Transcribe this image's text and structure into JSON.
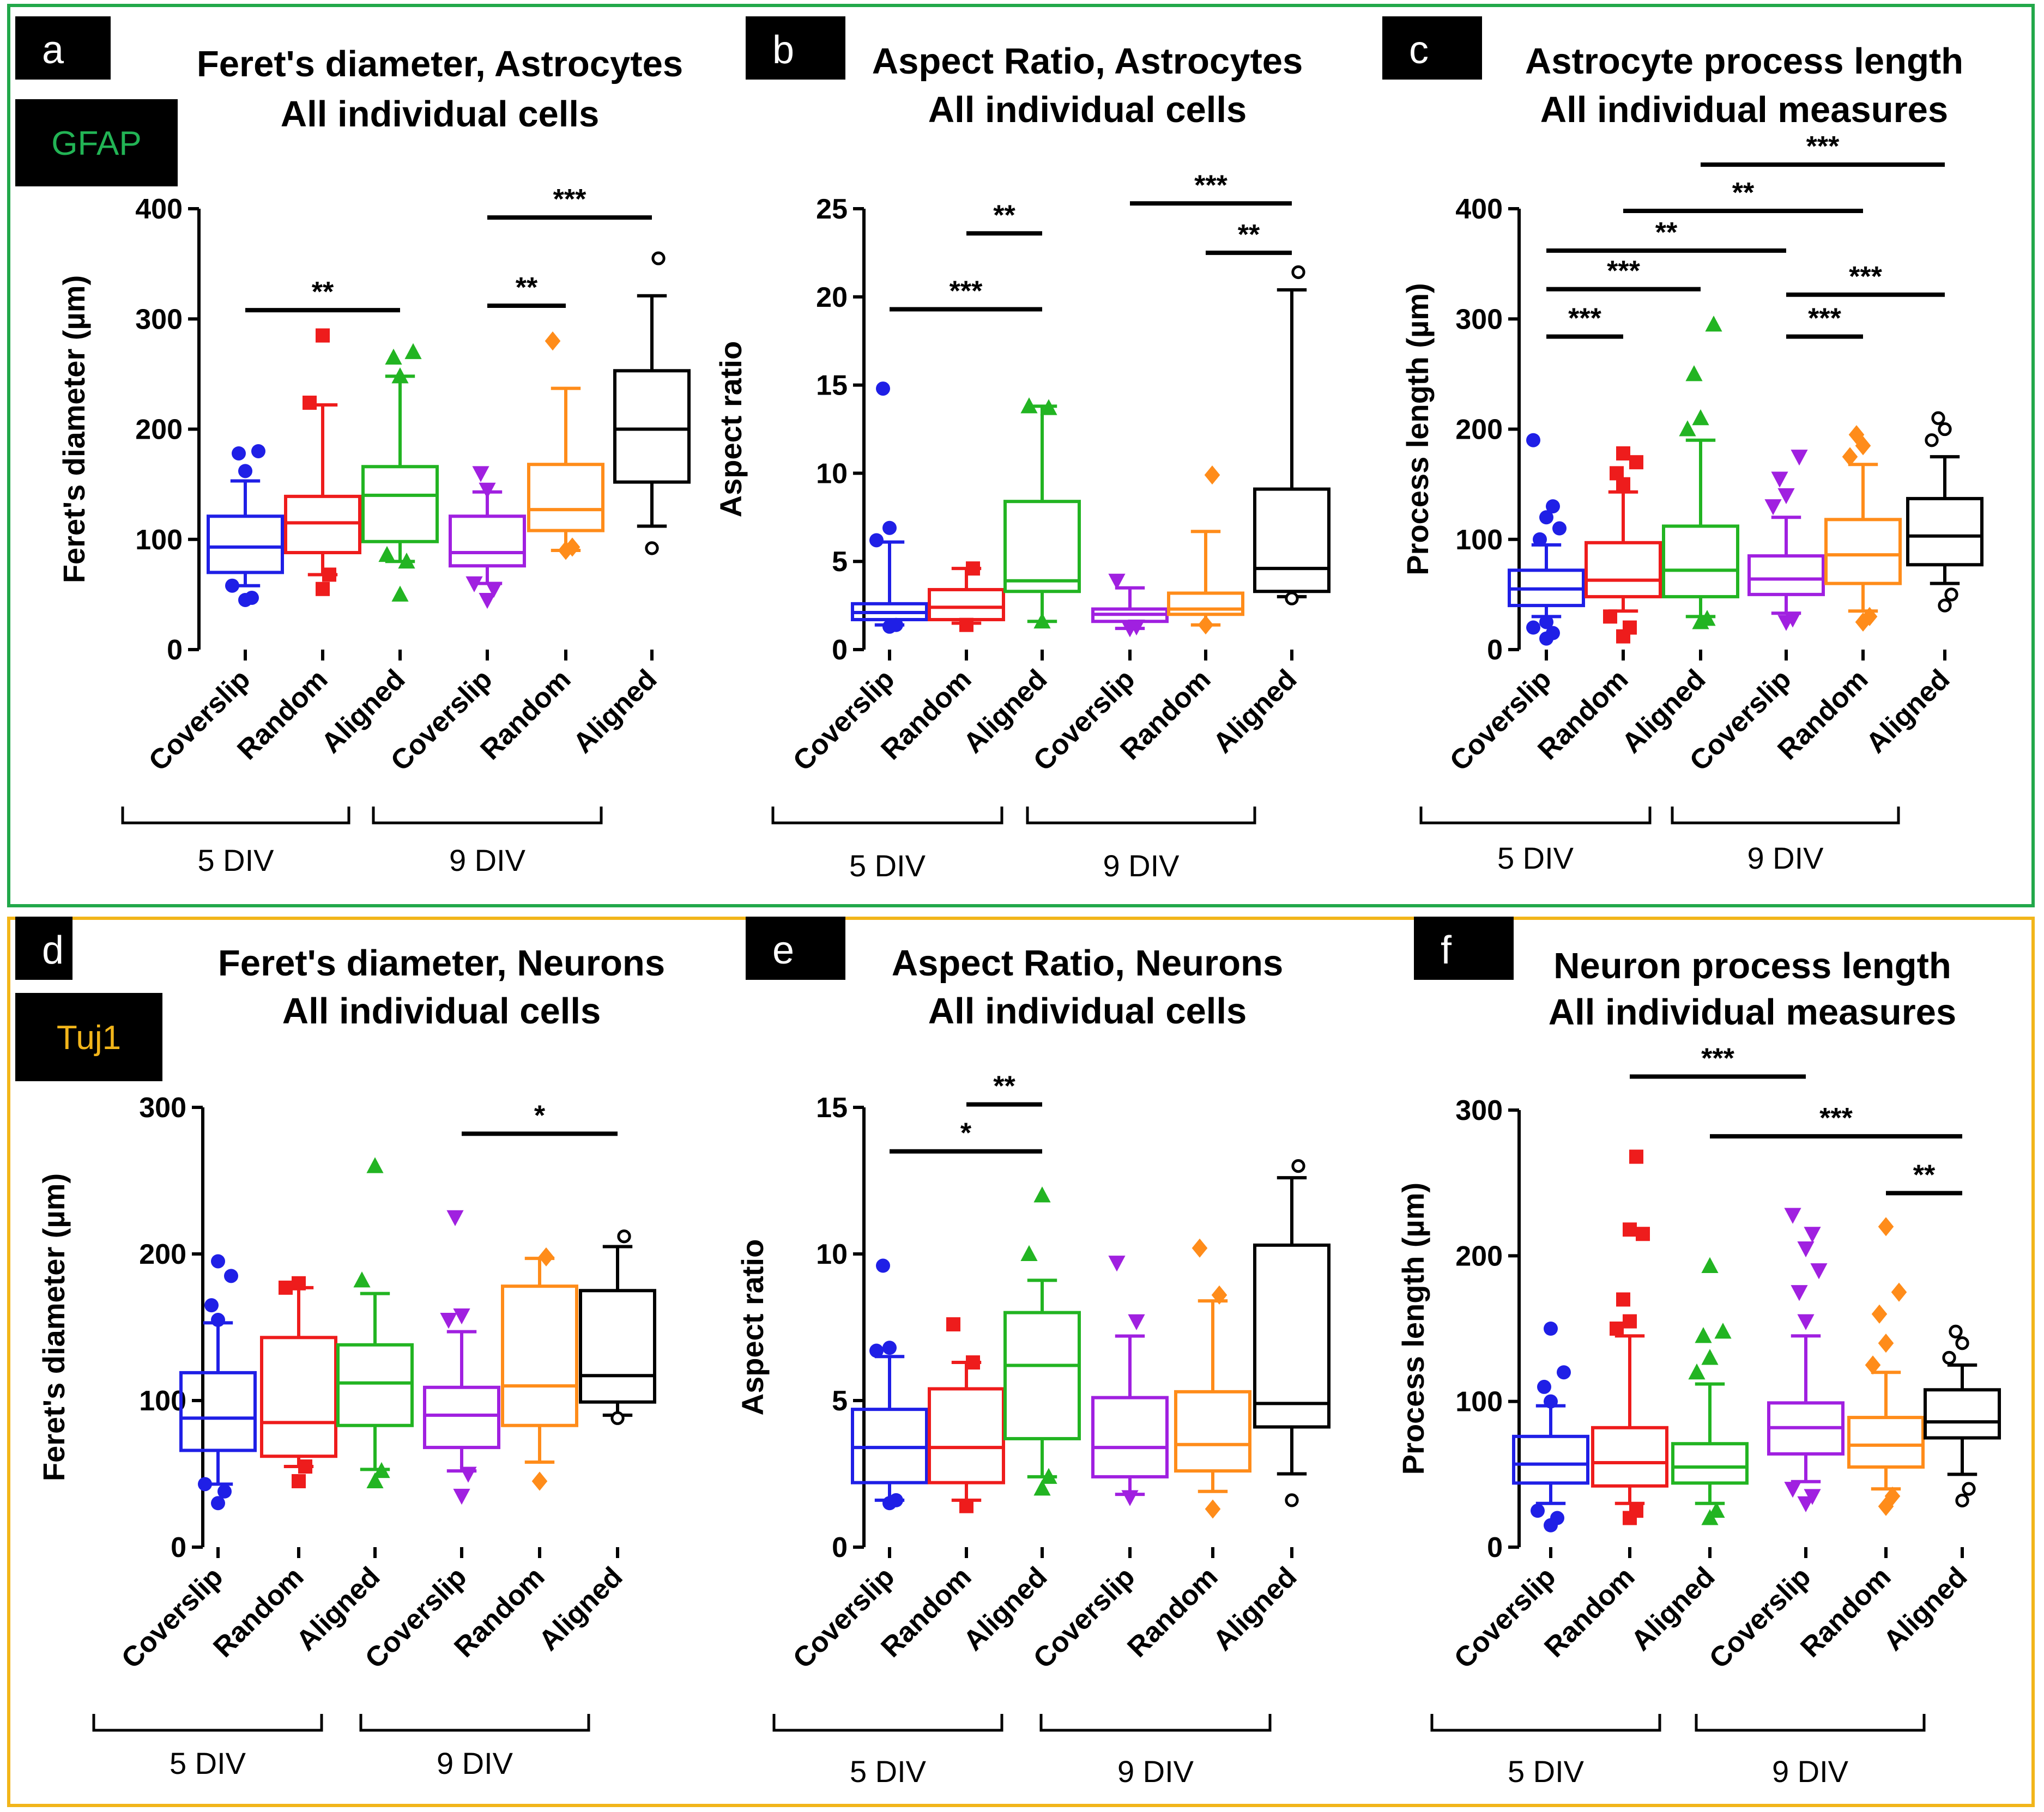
{
  "colors": {
    "astro_border": "#22a84a",
    "neuron_border": "#f2b51a",
    "groups": [
      "#1f1fe6",
      "#ee1c1c",
      "#22b422",
      "#a020e0",
      "#ff8c1a",
      "#000000"
    ],
    "gfap_text": "#22b455",
    "tuj1_text": "#f2b51a"
  },
  "sections": [
    {
      "stain_label": "GFAP"
    },
    {
      "stain_label": "Tuj1"
    }
  ],
  "group_labels": {
    "div5": "5 DIV",
    "div9": "9 DIV"
  },
  "chart_data": [
    {
      "panel": "a",
      "type": "box",
      "title": [
        "Feret's diameter, Astrocytes",
        "All individual cells"
      ],
      "ylabel": "Feret's diameter (µm)",
      "ylim": [
        0,
        400
      ],
      "yticks": [
        0,
        100,
        200,
        300,
        400
      ],
      "categories": [
        "Coverslip",
        "Random",
        "Aligned",
        "Coverslip",
        "Random",
        "Aligned"
      ],
      "markers": [
        "circle",
        "square",
        "triangle",
        "triangle-down",
        "diamond",
        "open-circle"
      ],
      "boxes": [
        {
          "min": 58,
          "q1": 70,
          "median": 93,
          "q3": 121,
          "max": 153,
          "outliers": [
            45,
            47,
            58,
            162,
            178,
            180
          ]
        },
        {
          "min": 68,
          "q1": 88,
          "median": 115,
          "q3": 139,
          "max": 222,
          "outliers": [
            55,
            68,
            224,
            285
          ]
        },
        {
          "min": 80,
          "q1": 98,
          "median": 140,
          "q3": 166,
          "max": 248,
          "outliers": [
            50,
            80,
            86,
            248,
            265,
            270
          ]
        },
        {
          "min": 60,
          "q1": 76,
          "median": 88,
          "q3": 121,
          "max": 143,
          "outliers": [
            45,
            55,
            60,
            145,
            160
          ]
        },
        {
          "min": 90,
          "q1": 108,
          "median": 127,
          "q3": 168,
          "max": 237,
          "outliers": [
            90,
            93,
            280
          ]
        },
        {
          "min": 112,
          "q1": 152,
          "median": 200,
          "q3": 253,
          "max": 321,
          "outliers": [
            92,
            355
          ]
        }
      ],
      "significance": [
        {
          "from": 0,
          "to": 2,
          "y": 308,
          "label": "**"
        },
        {
          "from": 3,
          "to": 4,
          "y": 312,
          "label": "**"
        },
        {
          "from": 3,
          "to": 5,
          "y": 392,
          "label": "***"
        }
      ]
    },
    {
      "panel": "b",
      "type": "box",
      "title": [
        "Aspect Ratio, Astrocytes",
        "All individual cells"
      ],
      "ylabel": "Aspect ratio",
      "ylim": [
        0,
        25
      ],
      "yticks": [
        0,
        5,
        10,
        15,
        20,
        25
      ],
      "categories": [
        "Coverslip",
        "Random",
        "Aligned",
        "Coverslip",
        "Random",
        "Aligned"
      ],
      "markers": [
        "circle",
        "square",
        "triangle",
        "triangle-down",
        "diamond",
        "open-circle"
      ],
      "boxes": [
        {
          "min": 1.4,
          "q1": 1.7,
          "median": 2.1,
          "q3": 2.6,
          "max": 6.1,
          "outliers": [
            1.3,
            1.4,
            6.2,
            6.9,
            14.8
          ]
        },
        {
          "min": 1.5,
          "q1": 1.7,
          "median": 2.4,
          "q3": 3.4,
          "max": 4.6,
          "outliers": [
            1.4,
            4.6
          ]
        },
        {
          "min": 1.6,
          "q1": 3.3,
          "median": 3.9,
          "q3": 8.4,
          "max": 13.8,
          "outliers": [
            1.6,
            13.7,
            13.8
          ]
        },
        {
          "min": 1.2,
          "q1": 1.6,
          "median": 2.0,
          "q3": 2.3,
          "max": 3.5,
          "outliers": [
            1.2,
            1.3,
            3.9
          ]
        },
        {
          "min": 1.4,
          "q1": 2.0,
          "median": 2.3,
          "q3": 3.2,
          "max": 6.7,
          "outliers": [
            1.4,
            9.9
          ]
        },
        {
          "min": 3.0,
          "q1": 3.3,
          "median": 4.6,
          "q3": 9.1,
          "max": 20.4,
          "outliers": [
            2.9,
            21.4
          ]
        }
      ],
      "significance": [
        {
          "from": 0,
          "to": 2,
          "y": 19.3,
          "label": "***"
        },
        {
          "from": 1,
          "to": 2,
          "y": 23.6,
          "label": "**"
        },
        {
          "from": 3,
          "to": 5,
          "y": 25.3,
          "label": "***"
        },
        {
          "from": 4,
          "to": 5,
          "y": 22.5,
          "label": "**"
        }
      ]
    },
    {
      "panel": "c",
      "type": "box",
      "title": [
        "Astrocyte process length",
        "All individual measures"
      ],
      "ylabel": "Process length (µm)",
      "ylim": [
        0,
        400
      ],
      "yticks": [
        0,
        100,
        200,
        300,
        400
      ],
      "categories": [
        "Coverslip",
        "Random",
        "Aligned",
        "Coverslip",
        "Random",
        "Aligned"
      ],
      "markers": [
        "circle",
        "square",
        "triangle",
        "triangle-down",
        "diamond",
        "open-circle"
      ],
      "boxes": [
        {
          "min": 30,
          "q1": 40,
          "median": 55,
          "q3": 72,
          "max": 95,
          "outliers": [
            10,
            15,
            20,
            25,
            100,
            110,
            120,
            130,
            190
          ]
        },
        {
          "min": 35,
          "q1": 48,
          "median": 63,
          "q3": 97,
          "max": 143,
          "outliers": [
            12,
            20,
            30,
            150,
            160,
            170,
            178
          ]
        },
        {
          "min": 30,
          "q1": 48,
          "median": 72,
          "q3": 112,
          "max": 190,
          "outliers": [
            25,
            28,
            200,
            210,
            250,
            295
          ]
        },
        {
          "min": 33,
          "q1": 50,
          "median": 64,
          "q3": 85,
          "max": 120,
          "outliers": [
            25,
            28,
            130,
            140,
            155,
            175
          ]
        },
        {
          "min": 35,
          "q1": 60,
          "median": 86,
          "q3": 118,
          "max": 168,
          "outliers": [
            25,
            30,
            175,
            185,
            195
          ]
        },
        {
          "min": 60,
          "q1": 77,
          "median": 103,
          "q3": 137,
          "max": 175,
          "outliers": [
            40,
            50,
            190,
            200,
            210
          ]
        }
      ],
      "significance": [
        {
          "from": 0,
          "to": 1,
          "y": 284,
          "label": "***"
        },
        {
          "from": 3,
          "to": 4,
          "y": 284,
          "label": "***"
        },
        {
          "from": 0,
          "to": 2,
          "y": 327,
          "label": "***"
        },
        {
          "from": 3,
          "to": 5,
          "y": 322,
          "label": "***"
        },
        {
          "from": 0,
          "to": 3,
          "y": 362,
          "label": "**"
        },
        {
          "from": 1,
          "to": 4,
          "y": 398,
          "label": "**"
        },
        {
          "from": 2,
          "to": 5,
          "y": 440,
          "label": "***"
        }
      ]
    },
    {
      "panel": "d",
      "type": "box",
      "title": [
        "Feret's diameter, Neurons",
        "All individual cells"
      ],
      "ylabel": "Feret's diameter (µm)",
      "ylim": [
        0,
        300
      ],
      "yticks": [
        0,
        100,
        200,
        300
      ],
      "categories": [
        "Coverslip",
        "Random",
        "Aligned",
        "Coverslip",
        "Random",
        "Aligned"
      ],
      "markers": [
        "circle",
        "square",
        "triangle",
        "triangle-down",
        "diamond",
        "open-circle"
      ],
      "boxes": [
        {
          "min": 43,
          "q1": 66,
          "median": 88,
          "q3": 119,
          "max": 153,
          "outliers": [
            30,
            38,
            43,
            155,
            165,
            185,
            195
          ]
        },
        {
          "min": 55,
          "q1": 62,
          "median": 85,
          "q3": 143,
          "max": 177,
          "outliers": [
            45,
            55,
            177,
            180
          ]
        },
        {
          "min": 53,
          "q1": 83,
          "median": 112,
          "q3": 138,
          "max": 173,
          "outliers": [
            45,
            52,
            182,
            260
          ]
        },
        {
          "min": 52,
          "q1": 68,
          "median": 90,
          "q3": 109,
          "max": 147,
          "outliers": [
            35,
            50,
            155,
            158,
            225
          ]
        },
        {
          "min": 58,
          "q1": 83,
          "median": 110,
          "q3": 178,
          "max": 197,
          "outliers": [
            45,
            198
          ]
        },
        {
          "min": 90,
          "q1": 99,
          "median": 117,
          "q3": 175,
          "max": 205,
          "outliers": [
            88,
            212
          ]
        }
      ],
      "significance": [
        {
          "from": 3,
          "to": 5,
          "y": 282,
          "label": "*"
        }
      ]
    },
    {
      "panel": "e",
      "type": "box",
      "title": [
        "Aspect Ratio, Neurons",
        "All individual cells"
      ],
      "ylabel": "Aspect ratio",
      "ylim": [
        0,
        15
      ],
      "yticks": [
        0,
        5,
        10,
        15
      ],
      "categories": [
        "Coverslip",
        "Random",
        "Aligned",
        "Coverslip",
        "Random",
        "Aligned"
      ],
      "markers": [
        "circle",
        "square",
        "triangle",
        "triangle-down",
        "diamond",
        "open-circle"
      ],
      "boxes": [
        {
          "min": 1.6,
          "q1": 2.2,
          "median": 3.4,
          "q3": 4.7,
          "max": 6.5,
          "outliers": [
            1.5,
            1.6,
            6.7,
            6.8,
            9.6
          ]
        },
        {
          "min": 1.6,
          "q1": 2.2,
          "median": 3.4,
          "q3": 5.4,
          "max": 6.3,
          "outliers": [
            1.4,
            6.3,
            7.6
          ]
        },
        {
          "min": 2.4,
          "q1": 3.7,
          "median": 6.2,
          "q3": 8.0,
          "max": 9.1,
          "outliers": [
            2.0,
            2.4,
            10.0,
            12.0
          ]
        },
        {
          "min": 1.8,
          "q1": 2.4,
          "median": 3.4,
          "q3": 5.1,
          "max": 7.2,
          "outliers": [
            1.7,
            7.7,
            9.7
          ]
        },
        {
          "min": 1.9,
          "q1": 2.6,
          "median": 3.5,
          "q3": 5.3,
          "max": 8.4,
          "outliers": [
            1.3,
            8.6,
            10.2
          ]
        },
        {
          "min": 2.5,
          "q1": 4.1,
          "median": 4.9,
          "q3": 10.3,
          "max": 12.6,
          "outliers": [
            1.6,
            13.0
          ]
        }
      ],
      "significance": [
        {
          "from": 0,
          "to": 2,
          "y": 13.5,
          "label": "*"
        },
        {
          "from": 1,
          "to": 2,
          "y": 15.1,
          "label": "**"
        }
      ]
    },
    {
      "panel": "f",
      "type": "box",
      "title": [
        "Neuron process length",
        "All individual measures"
      ],
      "ylabel": "Process length (µm)",
      "ylim": [
        0,
        300
      ],
      "yticks": [
        0,
        100,
        200,
        300
      ],
      "categories": [
        "Coverslip",
        "Random",
        "Aligned",
        "Coverslip",
        "Random",
        "Aligned"
      ],
      "markers": [
        "circle",
        "square",
        "triangle",
        "triangle-down",
        "diamond",
        "open-circle"
      ],
      "boxes": [
        {
          "min": 30,
          "q1": 44,
          "median": 57,
          "q3": 76,
          "max": 97,
          "outliers": [
            15,
            20,
            25,
            100,
            110,
            120,
            150
          ]
        },
        {
          "min": 30,
          "q1": 42,
          "median": 58,
          "q3": 82,
          "max": 145,
          "outliers": [
            20,
            25,
            150,
            155,
            170,
            215,
            218,
            268
          ]
        },
        {
          "min": 30,
          "q1": 44,
          "median": 55,
          "q3": 71,
          "max": 112,
          "outliers": [
            20,
            25,
            120,
            130,
            145,
            148,
            193
          ]
        },
        {
          "min": 45,
          "q1": 64,
          "median": 82,
          "q3": 99,
          "max": 145,
          "outliers": [
            30,
            35,
            40,
            155,
            175,
            190,
            205,
            215,
            228
          ]
        },
        {
          "min": 40,
          "q1": 55,
          "median": 70,
          "q3": 89,
          "max": 120,
          "outliers": [
            28,
            35,
            125,
            140,
            160,
            175,
            220
          ]
        },
        {
          "min": 50,
          "q1": 75,
          "median": 86,
          "q3": 108,
          "max": 125,
          "outliers": [
            32,
            40,
            130,
            140,
            148
          ]
        }
      ],
      "significance": [
        {
          "from": 1,
          "to": 3,
          "y": 323,
          "label": "***"
        },
        {
          "from": 2,
          "to": 5,
          "y": 282,
          "label": "***"
        },
        {
          "from": 4,
          "to": 5,
          "y": 243,
          "label": "**"
        }
      ]
    }
  ]
}
